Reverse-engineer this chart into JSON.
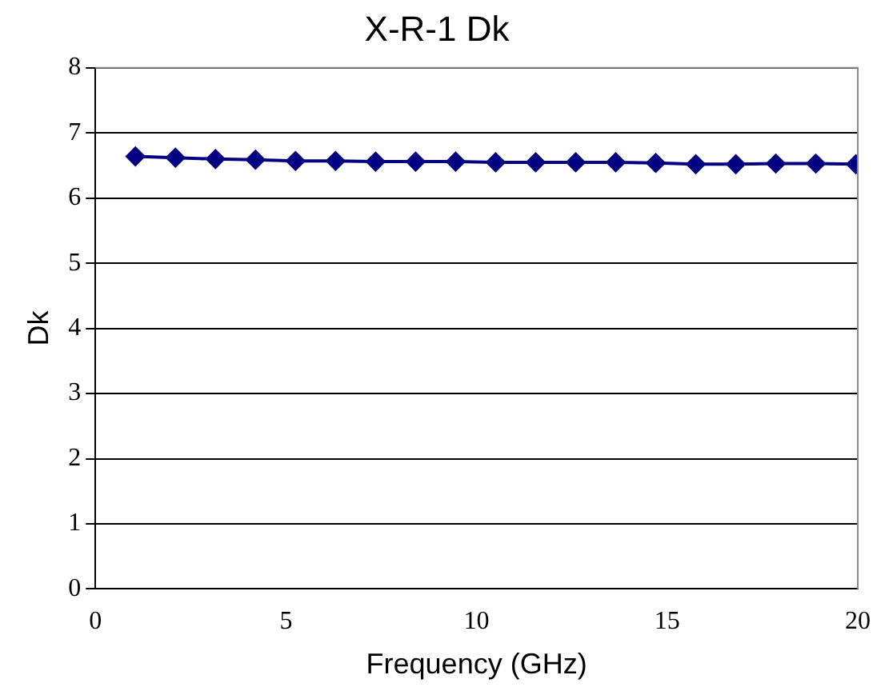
{
  "chart_data": {
    "type": "line",
    "title": "X-R-1 Dk",
    "xlabel": "Frequency (GHz)",
    "ylabel": "Dk",
    "x": [
      1.05,
      2.1,
      3.15,
      4.2,
      5.25,
      6.3,
      7.35,
      8.4,
      9.45,
      10.5,
      11.55,
      12.6,
      13.65,
      14.7,
      15.75,
      16.8,
      17.85,
      18.9,
      19.95
    ],
    "series": [
      {
        "color": "#000080",
        "values": [
          6.64,
          6.62,
          6.6,
          6.59,
          6.57,
          6.57,
          6.56,
          6.56,
          6.56,
          6.55,
          6.55,
          6.55,
          6.55,
          6.54,
          6.52,
          6.52,
          6.53,
          6.53,
          6.52
        ]
      }
    ],
    "xlim": [
      0,
      20
    ],
    "xticks": [
      0,
      5,
      10,
      15,
      20
    ],
    "ylim": [
      0,
      8
    ],
    "yticks": [
      0,
      1,
      2,
      3,
      4,
      5,
      6,
      7,
      8
    ],
    "grid": "y",
    "legend": false,
    "marker": "diamond",
    "line_style": "solid"
  }
}
